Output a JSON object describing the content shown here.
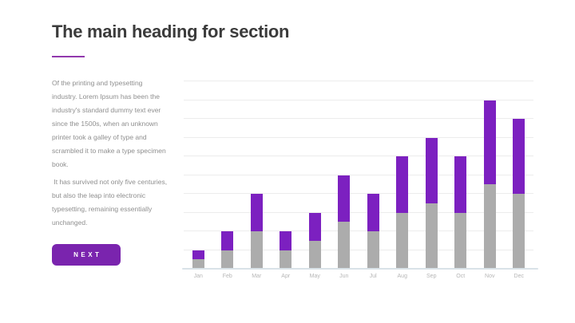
{
  "slide": {
    "heading": "The main heading for section",
    "paragraphs": [
      "Of the printing and typesetting industry. Lorem Ipsum has been the industry's standard dummy text ever since the 1500s, when an unknown printer took a galley of type and scrambled it to make a type specimen book.",
      " It has survived not only five centuries, but also the leap into electronic typesetting, remaining essentially unchanged."
    ],
    "next_button_label": "NEXT"
  },
  "colors": {
    "background": "#ffffff",
    "heading_text": "#3b3b3b",
    "underline_purple": "#9138ad",
    "body_text": "#8f8f8f",
    "accent_purple": "#7a24ae",
    "gridline": "#ececec",
    "axis_line": "#d9e2e8",
    "month_label": "#b6b6b6"
  },
  "chart_data": {
    "type": "bar",
    "stacked": true,
    "title": "",
    "xlabel": "",
    "ylabel": "",
    "categories": [
      "Jan",
      "Feb",
      "Mar",
      "Apr",
      "May",
      "Jun",
      "Jul",
      "Aug",
      "Sep",
      "Oct",
      "Nov",
      "Dec"
    ],
    "series": [
      {
        "name": "bottom-segment",
        "color": "#acacac",
        "values": [
          5,
          10,
          20,
          10,
          15,
          25,
          20,
          30,
          35,
          30,
          45,
          40
        ]
      },
      {
        "name": "top-segment",
        "color": "#7c20c0",
        "values": [
          5,
          10,
          20,
          10,
          15,
          25,
          20,
          30,
          35,
          30,
          45,
          40
        ]
      }
    ],
    "totals": [
      10,
      20,
      40,
      20,
      30,
      50,
      40,
      60,
      70,
      60,
      90,
      80
    ],
    "ylim": [
      0,
      100
    ],
    "gridline_step": 10,
    "grid": "horizontal",
    "legend_position": "none",
    "y_axis_labels": "none"
  }
}
